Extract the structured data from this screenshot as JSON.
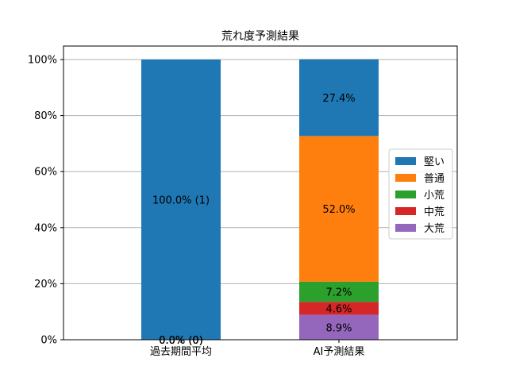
{
  "chart_data": {
    "type": "bar",
    "stacked": true,
    "title": "荒れ度予測結果",
    "xlabel": "",
    "ylabel": "",
    "categories": [
      "過去期間平均",
      "AI予測結果"
    ],
    "ylim": [
      0,
      100
    ],
    "yticks": [
      0,
      20,
      40,
      60,
      80,
      100
    ],
    "ytick_labels": [
      "0%",
      "20%",
      "40%",
      "60%",
      "80%",
      "100%"
    ],
    "grid": "y",
    "legend_position": "center-right",
    "series": [
      {
        "name": "大荒",
        "color": "#9467bd",
        "values": [
          0,
          8.9
        ],
        "labels": [
          "0.0% (0)",
          "8.9%"
        ]
      },
      {
        "name": "中荒",
        "color": "#d62728",
        "values": [
          0,
          4.6
        ],
        "labels": [
          "0.0% (0)",
          "4.6%"
        ]
      },
      {
        "name": "小荒",
        "color": "#2ca02c",
        "values": [
          0,
          7.2
        ],
        "labels": [
          "0.0% (0)",
          "7.2%"
        ]
      },
      {
        "name": "普通",
        "color": "#ff7f0e",
        "values": [
          0,
          52.0
        ],
        "labels": [
          "0.0% (0)",
          "52.0%"
        ]
      },
      {
        "name": "堅い",
        "color": "#1f77b4",
        "values": [
          100.0,
          27.4
        ],
        "labels": [
          "100.0% (1)",
          "27.4%"
        ]
      }
    ],
    "legend_order": [
      "堅い",
      "普通",
      "小荒",
      "中荒",
      "大荒"
    ]
  }
}
